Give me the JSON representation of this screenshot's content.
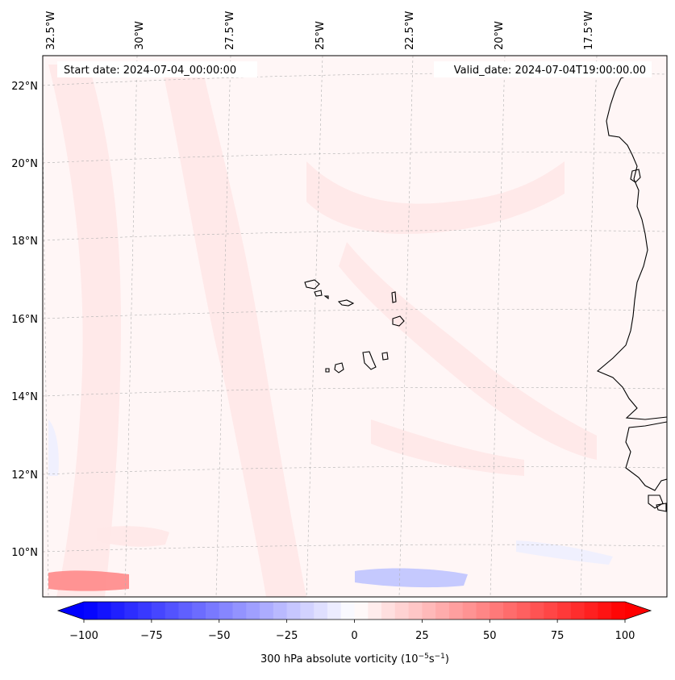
{
  "header": {
    "start_label": "Start date: 2024-07-04_00:00:00",
    "valid_label": "Valid_date: 2024-07-04T19:00:00.00"
  },
  "map": {
    "lon_ticks": [
      "32.5°W",
      "30°W",
      "27.5°W",
      "25°W",
      "22.5°W",
      "20°W",
      "17.5°W"
    ],
    "lat_ticks": [
      "22°N",
      "20°N",
      "18°N",
      "16°N",
      "14°N",
      "12°N",
      "10°N"
    ],
    "gridlines": true,
    "field_colors": {
      "background": "#fff6f6",
      "positive_band": "#ffe8e8",
      "positive_strong": "#ff8a8a",
      "negative_band": "#eef0ff",
      "negative_strong": "#bfc4ff"
    },
    "coast_color": "#000000"
  },
  "colorbar": {
    "label_prefix": "300 hPa absolute vorticity (10",
    "label_sup1": "−5",
    "label_mid": "s",
    "label_sup2": "−1",
    "label_suffix": ")",
    "ticks": [
      "−100",
      "−75",
      "−50",
      "−25",
      "0",
      "25",
      "50",
      "75",
      "100"
    ],
    "vmin": -100,
    "vmax": 100,
    "cmap_low": "#0000ff",
    "cmap_mid": "#ffffff",
    "cmap_high": "#ff0000"
  }
}
